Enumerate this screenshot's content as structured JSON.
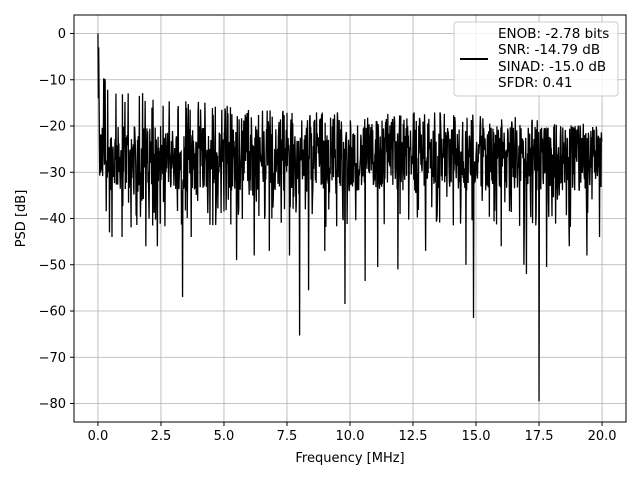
{
  "chart_data": {
    "type": "line",
    "title": "",
    "xlabel": "Frequency [MHz]",
    "ylabel": "PSD [dB]",
    "xlim": [
      -0.95,
      20.95
    ],
    "ylim": [
      -84,
      4
    ],
    "xticks": [
      0.0,
      2.5,
      5.0,
      7.5,
      10.0,
      12.5,
      15.0,
      17.5,
      20.0
    ],
    "xtick_labels": [
      "0.0",
      "2.5",
      "5.0",
      "7.5",
      "10.0",
      "12.5",
      "15.0",
      "17.5",
      "20.0"
    ],
    "yticks": [
      0,
      -10,
      -20,
      -30,
      -40,
      -50,
      -60,
      -70,
      -80
    ],
    "ytick_labels": [
      "0",
      "−10",
      "−20",
      "−30",
      "−40",
      "−50",
      "−60",
      "−70",
      "−80"
    ],
    "grid": true,
    "legend_position": "upper right",
    "legend_lines": [
      "ENOB: -2.78 bits",
      "SNR: -14.79 dB",
      "SINAD: -15.0 dB",
      "SFDR: 0.41"
    ],
    "series_color": "#000000",
    "baseline_db": -27,
    "noise_spread_db": 7,
    "upper_envelope": [
      [
        0.0,
        0
      ],
      [
        0.3,
        -10
      ],
      [
        1.0,
        -12
      ],
      [
        3.0,
        -14
      ],
      [
        6.0,
        -16
      ],
      [
        10.0,
        -17
      ],
      [
        14.0,
        -17
      ],
      [
        17.0,
        -18
      ],
      [
        20.0,
        -20
      ]
    ],
    "dips": [
      [
        0.45,
        -43
      ],
      [
        0.55,
        -44
      ],
      [
        0.95,
        -44
      ],
      [
        1.9,
        -46
      ],
      [
        2.35,
        -46
      ],
      [
        3.35,
        -57
      ],
      [
        3.7,
        -44
      ],
      [
        5.5,
        -49
      ],
      [
        6.2,
        -48
      ],
      [
        6.8,
        -47
      ],
      [
        7.6,
        -48
      ],
      [
        8.0,
        -65.3
      ],
      [
        8.35,
        -55.5
      ],
      [
        9.0,
        -47
      ],
      [
        9.8,
        -58.5
      ],
      [
        10.6,
        -53.5
      ],
      [
        11.1,
        -50.5
      ],
      [
        11.9,
        -51
      ],
      [
        13.0,
        -47
      ],
      [
        14.6,
        -50
      ],
      [
        14.9,
        -61.5
      ],
      [
        16.0,
        -46
      ],
      [
        16.9,
        -50
      ],
      [
        17.0,
        -52
      ],
      [
        17.5,
        -79.5
      ],
      [
        17.8,
        -50.5
      ],
      [
        18.7,
        -46
      ],
      [
        19.4,
        -48
      ],
      [
        19.9,
        -44
      ]
    ]
  }
}
